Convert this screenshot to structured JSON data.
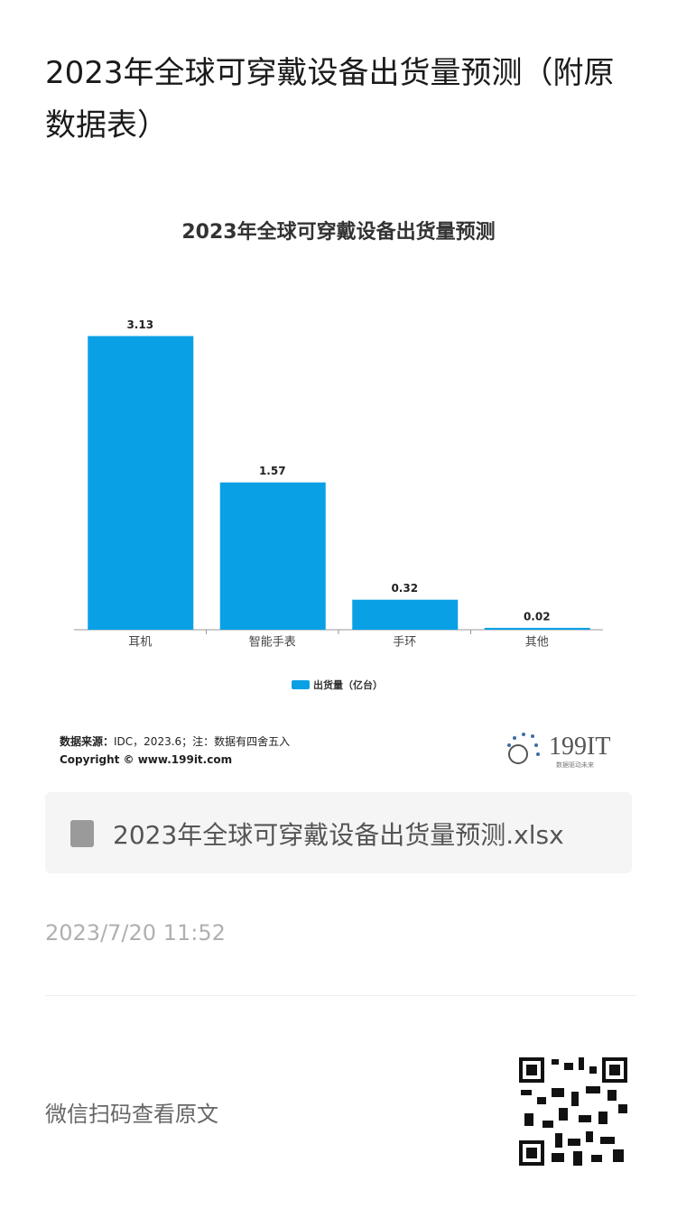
{
  "header": {
    "title": "2023年全球可穿戴设备出货量预测（附原数据表）"
  },
  "chart_data": {
    "type": "bar",
    "title": "2023年全球可穿戴设备出货量预测",
    "categories": [
      "耳机",
      "智能手表",
      "手环",
      "其他"
    ],
    "series": [
      {
        "name": "出货量（亿台）",
        "color": "#0aa0e6",
        "values": [
          3.13,
          1.57,
          0.32,
          0.02
        ]
      }
    ],
    "legend": "bottom"
  },
  "source": {
    "label": "数据来源：",
    "text": "IDC，2023.6；注：数据有四舍五入",
    "copyright": "Copyright © www.199it.com"
  },
  "logo": {
    "name": "199IT",
    "slogan": "数据驱动未来"
  },
  "file": {
    "name": "2023年全球可穿戴设备出货量预测.xlsx"
  },
  "date": "2023/7/20 11:52",
  "footer": {
    "scan_text": "微信扫码查看原文"
  }
}
